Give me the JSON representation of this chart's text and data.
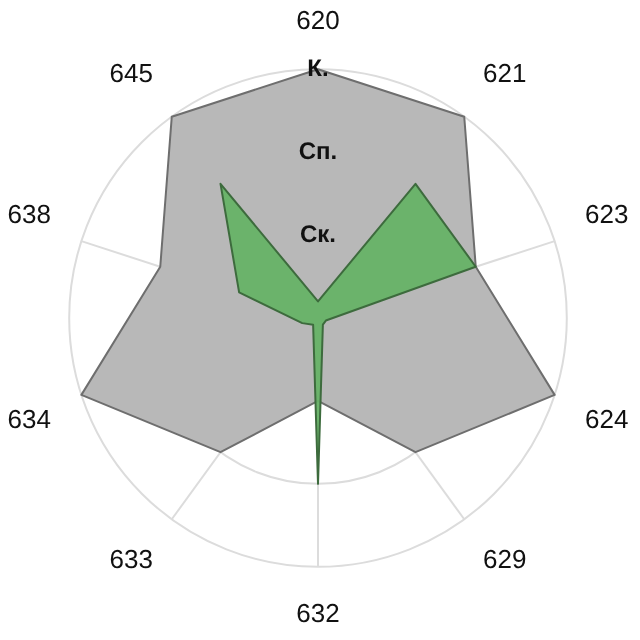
{
  "chart_data": {
    "type": "radar",
    "categories": [
      "620",
      "621",
      "623",
      "624",
      "629",
      "632",
      "633",
      "634",
      "638",
      "645"
    ],
    "series": [
      {
        "color": "#b8b8b8",
        "values": [
          3,
          3,
          2,
          3,
          2,
          1,
          2,
          3,
          2,
          3
        ]
      },
      {
        "color": "#66b266",
        "values": [
          0.2,
          2,
          2,
          0.1,
          0.1,
          2,
          0.1,
          0.2,
          1,
          2
        ]
      }
    ],
    "ylim": [
      0,
      3
    ],
    "yticks": [
      {
        "value": 1,
        "label": "Ск."
      },
      {
        "value": 2,
        "label": "Сп."
      },
      {
        "value": 3,
        "label": "К."
      }
    ],
    "grid": true,
    "legend": false,
    "marker": "none"
  }
}
